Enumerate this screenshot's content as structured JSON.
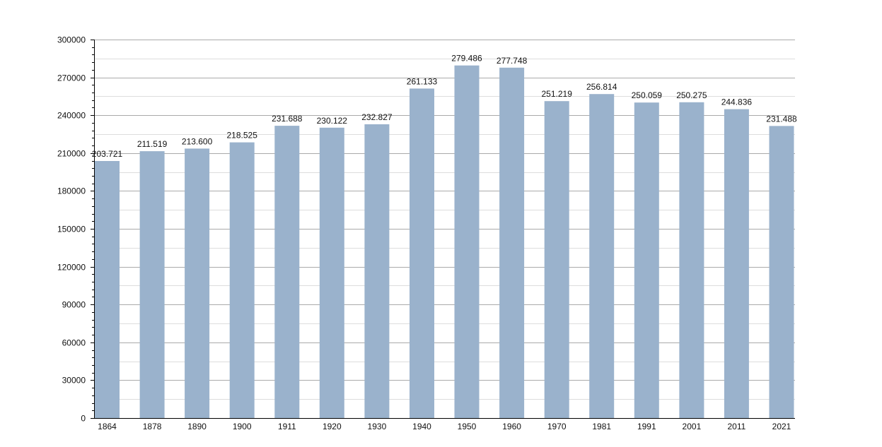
{
  "chart_data": {
    "type": "bar",
    "categories": [
      "1864",
      "1878",
      "1890",
      "1900",
      "1911",
      "1920",
      "1930",
      "1940",
      "1950",
      "1960",
      "1970",
      "1981",
      "1991",
      "2001",
      "2011",
      "2021"
    ],
    "values": [
      203721,
      211519,
      213600,
      218525,
      231688,
      230122,
      232827,
      261133,
      279486,
      277748,
      251219,
      256814,
      250059,
      250275,
      244836,
      231488
    ],
    "data_labels": [
      "203.721",
      "211.519",
      "213.600",
      "218.525",
      "231.688",
      "230.122",
      "232.827",
      "261.133",
      "279.486",
      "277.748",
      "251.219",
      "256.814",
      "250.059",
      "250.275",
      "244.836",
      "231.488"
    ],
    "ylim": [
      0,
      300000
    ],
    "yticks": [
      "0",
      "30000",
      "60000",
      "90000",
      "120000",
      "150000",
      "180000",
      "210000",
      "240000",
      "270000",
      "300000"
    ],
    "grid": true,
    "title": "",
    "xlabel": "",
    "ylabel": "",
    "colors": {
      "bar": "#9ab2cc",
      "grid_major": "#aaaaaa",
      "grid_minor": "#dddddd",
      "axis": "#000000",
      "text": "#111111"
    }
  }
}
